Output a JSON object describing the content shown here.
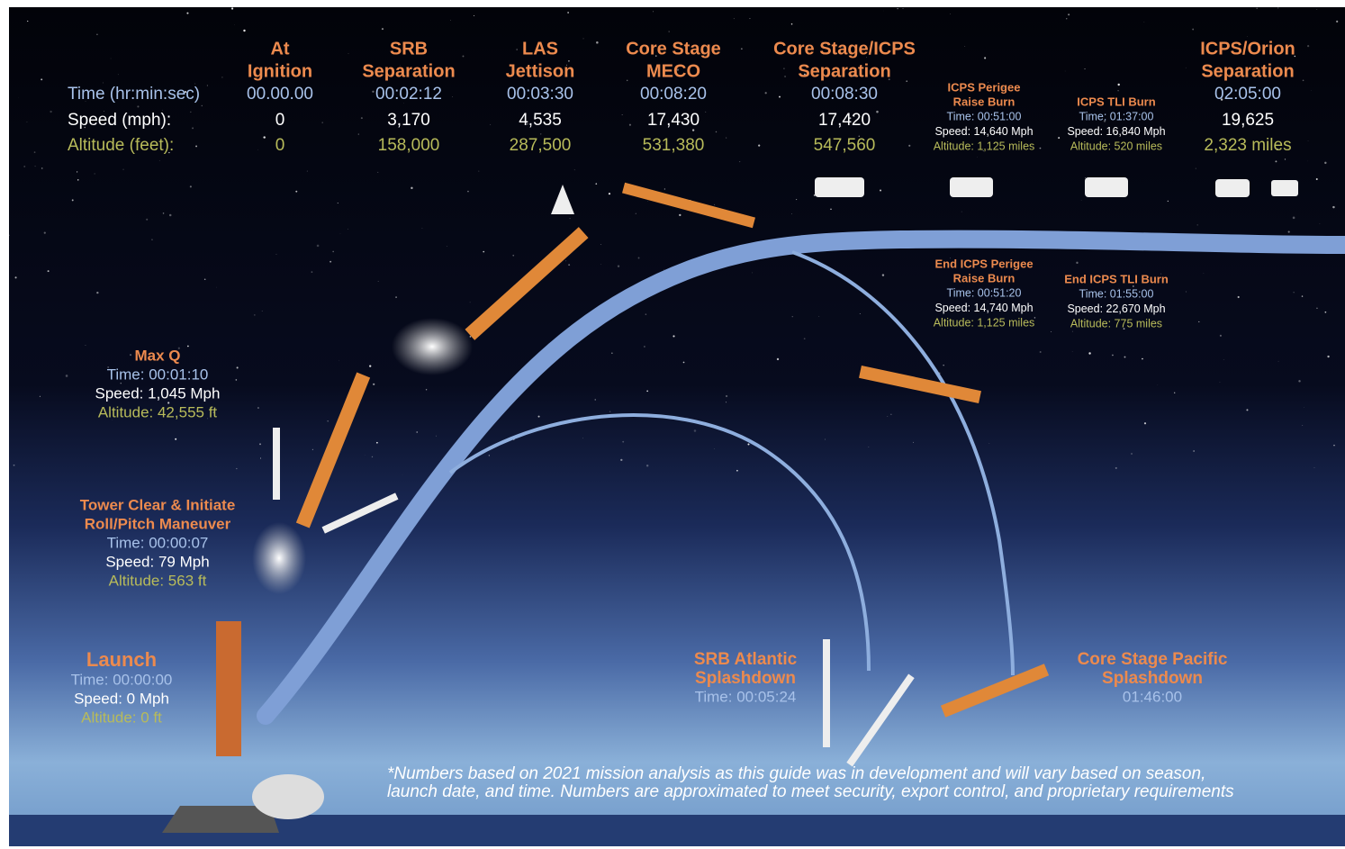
{
  "row_labels": {
    "time": "Time (hr:min:sec)",
    "speed": "Speed (mph):",
    "altitude": "Altitude (feet):"
  },
  "milestones": [
    {
      "title": [
        "At",
        "Ignition"
      ],
      "time": "00.00.00",
      "speed": "0",
      "altitude": "0"
    },
    {
      "title": [
        "SRB",
        "Separation"
      ],
      "time": "00:02:12",
      "speed": "3,170",
      "altitude": "158,000"
    },
    {
      "title": [
        "LAS",
        "Jettison"
      ],
      "time": "00:03:30",
      "speed": "4,535",
      "altitude": "287,500"
    },
    {
      "title": [
        "Core Stage",
        "MECO"
      ],
      "time": "00:08:20",
      "speed": "17,430",
      "altitude": "531,380"
    },
    {
      "title": [
        "Core Stage/ICPS",
        "Separation"
      ],
      "time": "00:08:30",
      "speed": "17,420",
      "altitude": "547,560"
    },
    {
      "title": [
        "ICPS/Orion",
        "Separation"
      ],
      "time": "02:05:00",
      "speed": "19,625",
      "altitude": "2,323 miles"
    }
  ],
  "burns": [
    {
      "title": [
        "ICPS Perigee",
        "Raise Burn"
      ],
      "time": "Time: 00:51:00",
      "speed": "Speed: 14,640 Mph",
      "altitude": "Altitude: 1,125 miles"
    },
    {
      "title": [
        "ICPS TLI Burn"
      ],
      "time": "Time: 01:37:00",
      "speed": "Speed: 16,840 Mph",
      "altitude": "Altitude: 520 miles"
    },
    {
      "title": [
        "End ICPS Perigee",
        "Raise Burn"
      ],
      "time": "Time: 00:51:20",
      "speed": "Speed: 14,740 Mph",
      "altitude": "Altitude: 1,125 miles"
    },
    {
      "title": [
        "End ICPS TLI Burn"
      ],
      "time": "Time: 01:55:00",
      "speed": "Speed: 22,670 Mph",
      "altitude": "Altitude: 775 miles"
    }
  ],
  "events": [
    {
      "title": [
        "Max Q"
      ],
      "time": "Time: 00:01:10",
      "speed": "Speed: 1,045 Mph",
      "altitude": "Altitude: 42,555 ft"
    },
    {
      "title": [
        "Tower Clear & Initiate",
        "Roll/Pitch Maneuver"
      ],
      "time": "Time: 00:00:07",
      "speed": "Speed: 79 Mph",
      "altitude": "Altitude: 563 ft"
    },
    {
      "title": [
        "Launch"
      ],
      "time": "Time: 00:00:00",
      "speed": "Speed: 0 Mph",
      "altitude": "Altitude: 0 ft"
    },
    {
      "title": [
        "SRB Atlantic",
        "Splashdown"
      ],
      "time": "Time: 00:05:24"
    },
    {
      "title": [
        "Core Stage Pacific",
        "Splashdown"
      ],
      "time": "01:46:00"
    }
  ],
  "footnote": [
    "*Numbers based on 2021 mission analysis as this guide was in development and will vary based on season,",
    "launch date, and time. Numbers are approximated to meet security, export control, and proprietary requirements"
  ]
}
